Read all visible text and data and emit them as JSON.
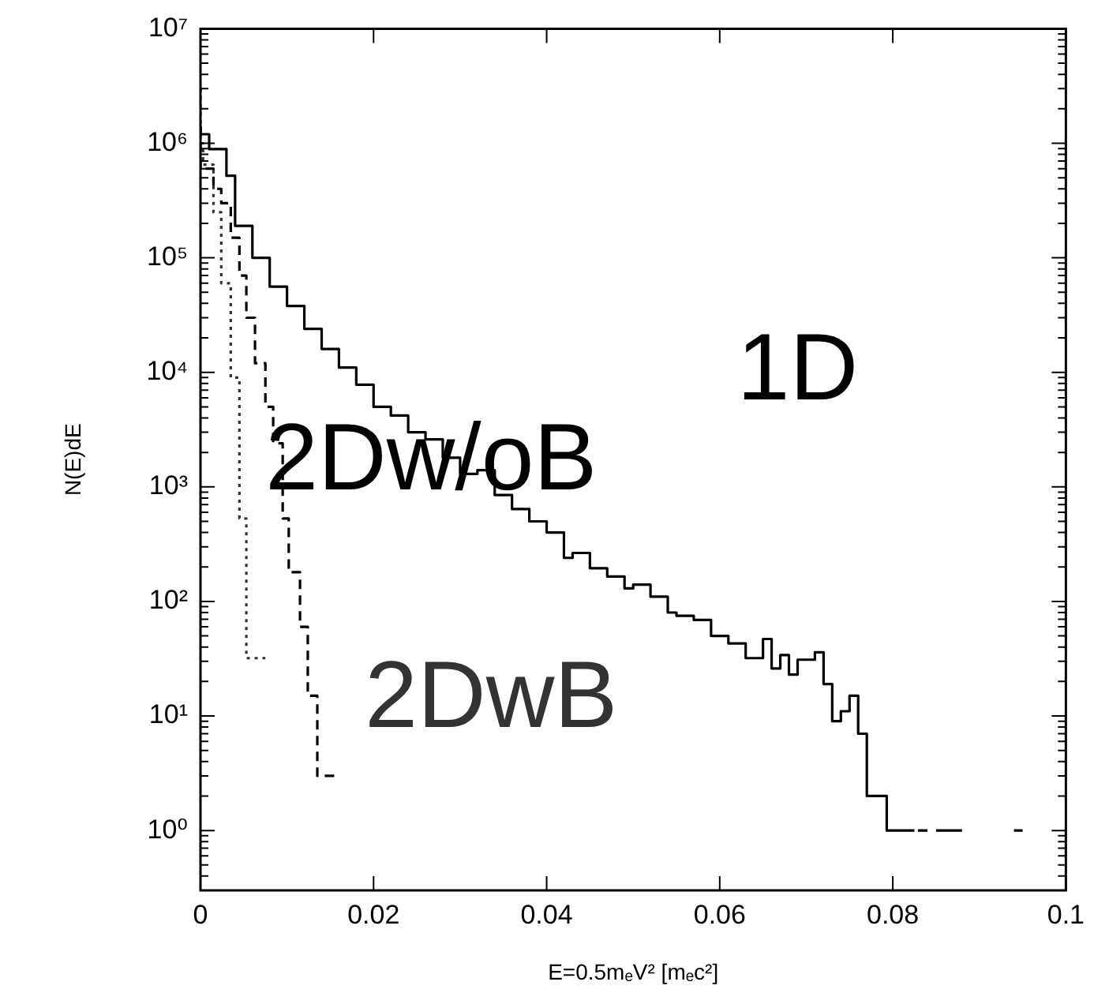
{
  "chart_data": {
    "type": "step",
    "xlabel": "E=0.5mₑV² [mₑc²]",
    "ylabel": "N(E)dE",
    "log": "y",
    "grid": false,
    "xlim": [
      0,
      0.1
    ],
    "xticks": [
      0,
      0.02,
      0.04,
      0.06,
      0.08,
      0.1
    ],
    "ylim": [
      0.3,
      10000000
    ],
    "yticks": [
      {
        "value": 1,
        "label": "10⁰"
      },
      {
        "value": 10,
        "label": "10¹"
      },
      {
        "value": 100,
        "label": "10²"
      },
      {
        "value": 1000,
        "label": "10³"
      },
      {
        "value": 10000,
        "label": "10⁴"
      },
      {
        "value": 100000,
        "label": "10⁵"
      },
      {
        "value": 1000000,
        "label": "10⁶"
      },
      {
        "value": 10000000,
        "label": "10⁷"
      }
    ],
    "series": [
      {
        "name": "1D",
        "color": "#000000",
        "line_style": "solid",
        "x": [
          0,
          0.001,
          0.003,
          0.004,
          0.006,
          0.008,
          0.01,
          0.012,
          0.014,
          0.016,
          0.018,
          0.02,
          0.022,
          0.024,
          0.026,
          0.028,
          0.03,
          0.032,
          0.034,
          0.036,
          0.038,
          0.04,
          0.042,
          0.043,
          0.045,
          0.047,
          0.049,
          0.05,
          0.052,
          0.054,
          0.055,
          0.057,
          0.059,
          0.061,
          0.063,
          0.065,
          0.066,
          0.067,
          0.068,
          0.069,
          0.071,
          0.072,
          0.073,
          0.074,
          0.075,
          0.076,
          0.077,
          0.0793,
          0.0815,
          0.0825,
          0.0826,
          0.0829,
          0.084,
          0.0841,
          0.085,
          0.088,
          0.0881,
          0.094,
          0.095
        ],
        "values": [
          1400000,
          1200000,
          890000,
          520000,
          190000,
          100000,
          56000,
          38000,
          24000,
          16000,
          11000,
          7800,
          5000,
          4200,
          3000,
          2600,
          1800,
          1300,
          1400,
          850,
          640,
          500,
          400,
          240,
          265,
          195,
          165,
          130,
          140,
          110,
          80,
          75,
          69,
          50,
          43,
          32,
          47,
          26,
          34,
          23,
          31,
          36,
          19,
          9,
          11,
          15,
          7,
          2,
          1,
          1,
          null,
          1,
          1,
          null,
          1,
          1,
          null,
          1,
          1
        ]
      },
      {
        "name": "2Dw/oB",
        "color": "#000000",
        "line_style": "dashed",
        "x": [
          0,
          0.0015,
          0.0024,
          0.0035,
          0.0045,
          0.0053,
          0.0063,
          0.0075,
          0.0084,
          0.0095,
          0.0102,
          0.0115,
          0.0124,
          0.0135,
          0.0144,
          0.0155
        ],
        "values": [
          1400000,
          600000,
          400000,
          300000,
          150000,
          70000,
          30000,
          12000,
          5000,
          2400,
          530,
          180,
          60,
          15,
          3,
          3
        ]
      },
      {
        "name": "2DwB",
        "color": "#333333",
        "line_style": "dotted",
        "x": [
          0,
          0.0003,
          0.0015,
          0.0024,
          0.0035,
          0.0045,
          0.0053,
          0.0065,
          0.0075
        ],
        "values": [
          3000000,
          1000000,
          650000,
          250000,
          60000,
          9000,
          530,
          32,
          32
        ]
      }
    ]
  }
}
